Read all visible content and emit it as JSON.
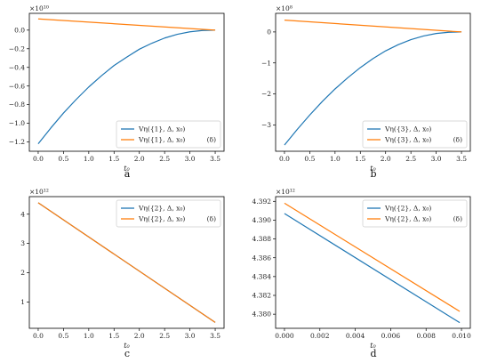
{
  "colors": {
    "blue": "#1f77b4",
    "orange": "#ff7f0e"
  },
  "chart_data": [
    {
      "type": "line",
      "caption": "a",
      "xlabel": "t₀",
      "offset_text": "×10¹⁰",
      "xlim": [
        -0.175,
        3.675
      ],
      "ylim": [
        -1.3,
        0.18
      ],
      "xticks": [
        0.0,
        0.5,
        1.0,
        1.5,
        2.0,
        2.5,
        3.0,
        3.5
      ],
      "xtick_labels": [
        "0.0",
        "0.5",
        "1.0",
        "1.5",
        "2.0",
        "2.5",
        "3.0",
        "3.5"
      ],
      "yticks": [
        -1.2,
        -1.0,
        -0.8,
        -0.6,
        -0.4,
        -0.2,
        0.0
      ],
      "ytick_labels": [
        "−1.2",
        "−1.0",
        "−0.8",
        "−0.6",
        "−0.4",
        "−0.2",
        "0.0"
      ],
      "legend_position": "lower-right",
      "series": [
        {
          "name": "Vη({1}, Δ, x₀)",
          "color": "blue",
          "x": [
            0.0,
            0.25,
            0.5,
            0.75,
            1.0,
            1.25,
            1.5,
            1.75,
            2.0,
            2.25,
            2.5,
            2.75,
            3.0,
            3.25,
            3.5
          ],
          "y": [
            -1.22,
            -1.05,
            -0.89,
            -0.745,
            -0.61,
            -0.49,
            -0.38,
            -0.29,
            -0.205,
            -0.14,
            -0.085,
            -0.045,
            -0.018,
            -0.004,
            0.0
          ]
        },
        {
          "name": "Vη({1}, Δ, x₀)",
          "suffix": "(δ)",
          "color": "orange",
          "x": [
            0.0,
            3.5
          ],
          "y": [
            0.12,
            0.0
          ]
        }
      ]
    },
    {
      "type": "line",
      "caption": "b",
      "xlabel": "t₀",
      "offset_text": "×10⁸",
      "xlim": [
        -0.175,
        3.675
      ],
      "ylim": [
        -3.85,
        0.6
      ],
      "xticks": [
        0.0,
        0.5,
        1.0,
        1.5,
        2.0,
        2.5,
        3.0,
        3.5
      ],
      "xtick_labels": [
        "0.0",
        "0.5",
        "1.0",
        "1.5",
        "2.0",
        "2.5",
        "3.0",
        "3.5"
      ],
      "yticks": [
        -3,
        -2,
        -1,
        0
      ],
      "ytick_labels": [
        "−3",
        "−2",
        "−1",
        "0"
      ],
      "legend_position": "lower-right",
      "series": [
        {
          "name": "Vη({3}, Δ, x₀)",
          "color": "blue",
          "x": [
            0.0,
            0.25,
            0.5,
            0.75,
            1.0,
            1.25,
            1.5,
            1.75,
            2.0,
            2.25,
            2.5,
            2.75,
            3.0,
            3.25,
            3.5
          ],
          "y": [
            -3.65,
            -3.15,
            -2.68,
            -2.24,
            -1.84,
            -1.48,
            -1.15,
            -0.86,
            -0.61,
            -0.41,
            -0.25,
            -0.13,
            -0.05,
            -0.01,
            0.0
          ]
        },
        {
          "name": "Vη({3}, Δ, x₀)",
          "suffix": "(δ)",
          "color": "orange",
          "x": [
            0.0,
            3.5
          ],
          "y": [
            0.38,
            0.0
          ]
        }
      ]
    },
    {
      "type": "line",
      "caption": "c",
      "xlabel": "t₀",
      "offset_text": "×10¹²",
      "xlim": [
        -0.175,
        3.675
      ],
      "ylim": [
        0.1,
        4.6
      ],
      "xticks": [
        0.0,
        0.5,
        1.0,
        1.5,
        2.0,
        2.5,
        3.0,
        3.5
      ],
      "xtick_labels": [
        "0.0",
        "0.5",
        "1.0",
        "1.5",
        "2.0",
        "2.5",
        "3.0",
        "3.5"
      ],
      "yticks": [
        1,
        2,
        3,
        4
      ],
      "ytick_labels": [
        "1",
        "2",
        "3",
        "4"
      ],
      "legend_position": "upper-right",
      "series": [
        {
          "name": "Vη({2}, Δ, x₀)",
          "color": "blue",
          "x": [
            0.0,
            3.5
          ],
          "y": [
            4.39,
            0.3
          ]
        },
        {
          "name": "Vη({2}, Δ, x₀)",
          "suffix": "(δ)",
          "color": "orange",
          "x": [
            0.0,
            3.5
          ],
          "y": [
            4.39,
            0.3
          ]
        }
      ]
    },
    {
      "type": "line",
      "caption": "d",
      "xlabel": "t₀",
      "offset_text": "×10¹²",
      "xlim": [
        -0.0005,
        0.0105
      ],
      "ylim": [
        4.3785,
        4.3925
      ],
      "xticks": [
        0.0,
        0.002,
        0.004,
        0.006,
        0.008,
        0.01
      ],
      "xtick_labels": [
        "0.000",
        "0.002",
        "0.004",
        "0.006",
        "0.008",
        "0.010"
      ],
      "yticks": [
        4.38,
        4.382,
        4.384,
        4.386,
        4.388,
        4.39,
        4.392
      ],
      "ytick_labels": [
        "4.380",
        "4.382",
        "4.384",
        "4.386",
        "4.388",
        "4.390",
        "4.392"
      ],
      "legend_position": "upper-right",
      "series": [
        {
          "name": "Vη({2}, Δ, x₀)",
          "color": "blue",
          "x": [
            0.0,
            0.0099
          ],
          "y": [
            4.3907,
            4.3791
          ]
        },
        {
          "name": "Vη({2}, Δ, x₀)",
          "suffix": "(δ)",
          "color": "orange",
          "x": [
            0.0,
            0.0099
          ],
          "y": [
            4.3918,
            4.3803
          ]
        }
      ]
    }
  ]
}
